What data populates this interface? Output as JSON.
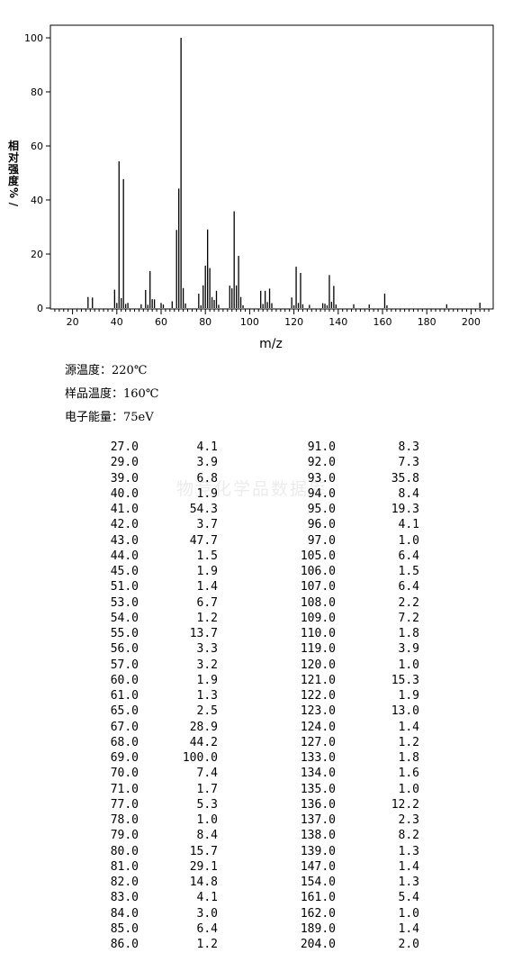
{
  "chart_data": {
    "type": "bar",
    "xlabel": "m/z",
    "ylabel": "相对强度%/",
    "xlim": [
      10,
      210
    ],
    "ylim": [
      0,
      105
    ],
    "xticks": [
      20,
      40,
      60,
      80,
      100,
      120,
      140,
      160,
      180,
      200
    ],
    "yticks": [
      0,
      20,
      40,
      60,
      80,
      100
    ],
    "points": [
      {
        "x": 27,
        "y": 4.1
      },
      {
        "x": 29,
        "y": 3.9
      },
      {
        "x": 39,
        "y": 6.8
      },
      {
        "x": 40,
        "y": 1.9
      },
      {
        "x": 41,
        "y": 54.3
      },
      {
        "x": 42,
        "y": 3.7
      },
      {
        "x": 43,
        "y": 47.7
      },
      {
        "x": 44,
        "y": 1.5
      },
      {
        "x": 45,
        "y": 1.9
      },
      {
        "x": 51,
        "y": 1.4
      },
      {
        "x": 53,
        "y": 6.7
      },
      {
        "x": 54,
        "y": 1.2
      },
      {
        "x": 55,
        "y": 13.7
      },
      {
        "x": 56,
        "y": 3.3
      },
      {
        "x": 57,
        "y": 3.2
      },
      {
        "x": 60,
        "y": 1.9
      },
      {
        "x": 61,
        "y": 1.3
      },
      {
        "x": 65,
        "y": 2.5
      },
      {
        "x": 67,
        "y": 28.9
      },
      {
        "x": 68,
        "y": 44.2
      },
      {
        "x": 69,
        "y": 100.0
      },
      {
        "x": 70,
        "y": 7.4
      },
      {
        "x": 71,
        "y": 1.7
      },
      {
        "x": 77,
        "y": 5.3
      },
      {
        "x": 78,
        "y": 1.0
      },
      {
        "x": 79,
        "y": 8.4
      },
      {
        "x": 80,
        "y": 15.7
      },
      {
        "x": 81,
        "y": 29.1
      },
      {
        "x": 82,
        "y": 14.8
      },
      {
        "x": 83,
        "y": 4.1
      },
      {
        "x": 84,
        "y": 3.0
      },
      {
        "x": 85,
        "y": 6.4
      },
      {
        "x": 86,
        "y": 1.2
      },
      {
        "x": 91,
        "y": 8.3
      },
      {
        "x": 92,
        "y": 7.3
      },
      {
        "x": 93,
        "y": 35.8
      },
      {
        "x": 94,
        "y": 8.4
      },
      {
        "x": 95,
        "y": 19.3
      },
      {
        "x": 96,
        "y": 4.1
      },
      {
        "x": 97,
        "y": 1.0
      },
      {
        "x": 105,
        "y": 6.4
      },
      {
        "x": 106,
        "y": 1.5
      },
      {
        "x": 107,
        "y": 6.4
      },
      {
        "x": 108,
        "y": 2.2
      },
      {
        "x": 109,
        "y": 7.2
      },
      {
        "x": 110,
        "y": 1.8
      },
      {
        "x": 119,
        "y": 3.9
      },
      {
        "x": 120,
        "y": 1.0
      },
      {
        "x": 121,
        "y": 15.3
      },
      {
        "x": 122,
        "y": 1.9
      },
      {
        "x": 123,
        "y": 13.0
      },
      {
        "x": 124,
        "y": 1.4
      },
      {
        "x": 127,
        "y": 1.2
      },
      {
        "x": 133,
        "y": 1.8
      },
      {
        "x": 134,
        "y": 1.6
      },
      {
        "x": 135,
        "y": 1.0
      },
      {
        "x": 136,
        "y": 12.2
      },
      {
        "x": 137,
        "y": 2.3
      },
      {
        "x": 138,
        "y": 8.2
      },
      {
        "x": 139,
        "y": 1.3
      },
      {
        "x": 147,
        "y": 1.4
      },
      {
        "x": 154,
        "y": 1.3
      },
      {
        "x": 161,
        "y": 5.4
      },
      {
        "x": 162,
        "y": 1.0
      },
      {
        "x": 189,
        "y": 1.4
      },
      {
        "x": 204,
        "y": 2.0
      }
    ]
  },
  "conditions": {
    "source_temp": "源温度：220℃",
    "sample_temp": "样品温度：160℃",
    "electron_energy": "电子能量：75eV"
  },
  "watermark": "物竞化学品数据库",
  "table": {
    "rows": [
      [
        "27.0",
        "4.1",
        "91.0",
        "8.3"
      ],
      [
        "29.0",
        "3.9",
        "92.0",
        "7.3"
      ],
      [
        "39.0",
        "6.8",
        "93.0",
        "35.8"
      ],
      [
        "40.0",
        "1.9",
        "94.0",
        "8.4"
      ],
      [
        "41.0",
        "54.3",
        "95.0",
        "19.3"
      ],
      [
        "42.0",
        "3.7",
        "96.0",
        "4.1"
      ],
      [
        "43.0",
        "47.7",
        "97.0",
        "1.0"
      ],
      [
        "44.0",
        "1.5",
        "105.0",
        "6.4"
      ],
      [
        "45.0",
        "1.9",
        "106.0",
        "1.5"
      ],
      [
        "51.0",
        "1.4",
        "107.0",
        "6.4"
      ],
      [
        "53.0",
        "6.7",
        "108.0",
        "2.2"
      ],
      [
        "54.0",
        "1.2",
        "109.0",
        "7.2"
      ],
      [
        "55.0",
        "13.7",
        "110.0",
        "1.8"
      ],
      [
        "56.0",
        "3.3",
        "119.0",
        "3.9"
      ],
      [
        "57.0",
        "3.2",
        "120.0",
        "1.0"
      ],
      [
        "60.0",
        "1.9",
        "121.0",
        "15.3"
      ],
      [
        "61.0",
        "1.3",
        "122.0",
        "1.9"
      ],
      [
        "65.0",
        "2.5",
        "123.0",
        "13.0"
      ],
      [
        "67.0",
        "28.9",
        "124.0",
        "1.4"
      ],
      [
        "68.0",
        "44.2",
        "127.0",
        "1.2"
      ],
      [
        "69.0",
        "100.0",
        "133.0",
        "1.8"
      ],
      [
        "70.0",
        "7.4",
        "134.0",
        "1.6"
      ],
      [
        "71.0",
        "1.7",
        "135.0",
        "1.0"
      ],
      [
        "77.0",
        "5.3",
        "136.0",
        "12.2"
      ],
      [
        "78.0",
        "1.0",
        "137.0",
        "2.3"
      ],
      [
        "79.0",
        "8.4",
        "138.0",
        "8.2"
      ],
      [
        "80.0",
        "15.7",
        "139.0",
        "1.3"
      ],
      [
        "81.0",
        "29.1",
        "147.0",
        "1.4"
      ],
      [
        "82.0",
        "14.8",
        "154.0",
        "1.3"
      ],
      [
        "83.0",
        "4.1",
        "161.0",
        "5.4"
      ],
      [
        "84.0",
        "3.0",
        "162.0",
        "1.0"
      ],
      [
        "85.0",
        "6.4",
        "189.0",
        "1.4"
      ],
      [
        "86.0",
        "1.2",
        "204.0",
        "2.0"
      ]
    ]
  }
}
